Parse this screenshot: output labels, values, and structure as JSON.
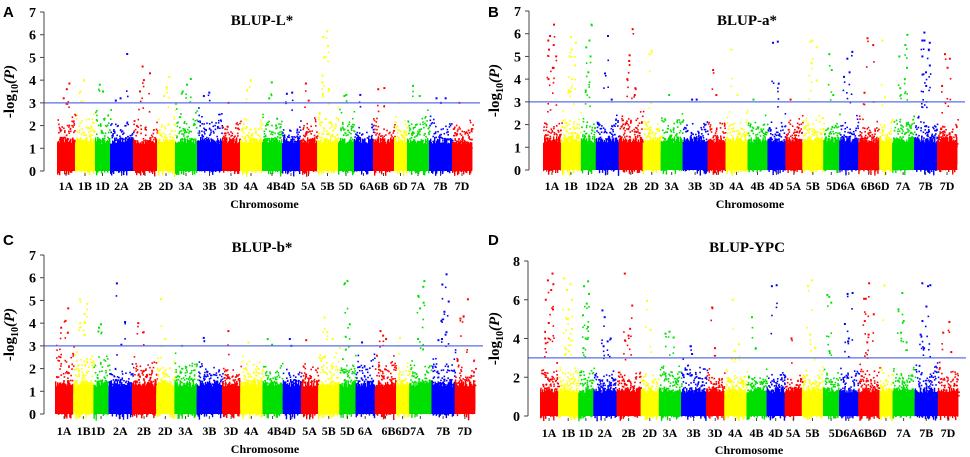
{
  "figure": {
    "chromosome_colors": [
      "#ff0000",
      "#ffff00",
      "#00e000",
      "#0000ff"
    ],
    "threshold_color": "#5b6fe8"
  },
  "chart_data": [
    {
      "panel": "A",
      "type": "scatter",
      "subtype": "manhattan",
      "title": "BLUP-L*",
      "xlabel": "Chromosome",
      "ylabel": "-log10(P)",
      "ylim": [
        0,
        7
      ],
      "yticks": [
        0,
        1,
        2,
        3,
        4,
        5,
        6,
        7
      ],
      "threshold": 3,
      "grid": false,
      "categories": [
        "1A",
        "1B",
        "1D",
        "2A",
        "2B",
        "2D",
        "3A",
        "3B",
        "3D",
        "4A",
        "4B",
        "4D",
        "5A",
        "5B",
        "5D",
        "6A",
        "6B",
        "6D",
        "7A",
        "7B",
        "7D"
      ],
      "category_labels": [
        "1A",
        "1B",
        "1D",
        "2A",
        "2B",
        "2D",
        "3A",
        "3B",
        "3D",
        "4A",
        "4B4D",
        "",
        "5A",
        "5B",
        "5D",
        "6A6B",
        "",
        "6D",
        "7A",
        "7B",
        "7D"
      ],
      "baseline_max": [
        2.8,
        2.9,
        3.0,
        2.7,
        2.6,
        2.8,
        3.0,
        2.9,
        2.6,
        2.9,
        2.9,
        2.4,
        2.7,
        2.9,
        3.0,
        2.3,
        2.6,
        2.8,
        3.0,
        2.6,
        2.7
      ],
      "peaks": [
        {
          "chr": "1A",
          "values": [
            3.2,
            3.6,
            3.85
          ]
        },
        {
          "chr": "1B",
          "values": [
            3.5,
            4.0
          ]
        },
        {
          "chr": "1D",
          "values": [
            3.8,
            3.5
          ]
        },
        {
          "chr": "2A",
          "values": [
            3.1,
            3.2,
            5.15
          ]
        },
        {
          "chr": "2B",
          "values": [
            3.5,
            4.0,
            4.3,
            4.6
          ]
        },
        {
          "chr": "2D",
          "values": [
            3.3,
            3.7,
            4.15
          ]
        },
        {
          "chr": "3A",
          "values": [
            3.5,
            3.8,
            4.05
          ]
        },
        {
          "chr": "3B",
          "values": [
            3.3,
            3.45
          ]
        },
        {
          "chr": "3D",
          "values": [
            3.0
          ]
        },
        {
          "chr": "4A",
          "values": [
            3.55,
            4.0
          ]
        },
        {
          "chr": "4B",
          "values": [
            3.2,
            3.9
          ]
        },
        {
          "chr": "4D",
          "values": [
            3.4,
            3.45
          ]
        },
        {
          "chr": "5A",
          "values": [
            3.85,
            3.1
          ]
        },
        {
          "chr": "5B",
          "values": [
            3.9,
            3.6,
            4.2,
            5.0,
            5.5,
            5.9,
            6.15
          ]
        },
        {
          "chr": "5D",
          "values": [
            3.3,
            3.35
          ]
        },
        {
          "chr": "6A",
          "values": [
            3.35
          ]
        },
        {
          "chr": "6B",
          "values": [
            3.6,
            3.65
          ]
        },
        {
          "chr": "6D",
          "values": [
            3.0
          ]
        },
        {
          "chr": "7A",
          "values": [
            3.75,
            3.3
          ]
        },
        {
          "chr": "7B",
          "values": [
            3.2,
            3.0,
            3.2
          ]
        },
        {
          "chr": "7D",
          "values": [
            3.0
          ]
        }
      ]
    },
    {
      "panel": "B",
      "type": "scatter",
      "subtype": "manhattan",
      "title": "BLUP-a*",
      "xlabel": "Chromosome",
      "ylabel": "-log10(P)",
      "ylim": [
        0,
        7
      ],
      "yticks": [
        0,
        1,
        2,
        3,
        4,
        5,
        6,
        7
      ],
      "threshold": 3,
      "grid": false,
      "categories": [
        "1A",
        "1B",
        "1D",
        "2A",
        "2B",
        "2D",
        "3A",
        "3B",
        "3D",
        "4A",
        "4B",
        "4D",
        "5A",
        "5B",
        "5D",
        "6A",
        "6B",
        "6D",
        "7A",
        "7B",
        "7D"
      ],
      "category_labels": [
        "1A",
        "1B",
        "1D2A",
        "",
        "2B",
        "2D",
        "3A",
        "3B",
        "3D",
        "4A",
        "4B",
        "4D",
        "5A",
        "5B",
        "5D6A",
        "",
        "6B6D",
        "",
        "7A",
        "7B",
        "7D"
      ],
      "baseline_max": [
        2.5,
        2.9,
        2.7,
        2.7,
        3.0,
        2.7,
        2.8,
        2.5,
        2.6,
        2.8,
        2.8,
        2.7,
        2.6,
        2.9,
        2.8,
        2.6,
        2.6,
        2.5,
        2.9,
        2.7,
        2.5
      ],
      "peaks": [
        {
          "chr": "1A",
          "values": [
            4.0,
            4.5,
            5.0,
            5.3,
            5.5,
            5.7,
            5.9,
            6.4
          ]
        },
        {
          "chr": "1B",
          "values": [
            3.5,
            4.0,
            4.6,
            5.0,
            5.3,
            5.6,
            5.85
          ]
        },
        {
          "chr": "1D",
          "values": [
            3.5,
            4.3,
            5.0,
            5.4,
            5.7,
            6.4
          ]
        },
        {
          "chr": "2A",
          "values": [
            4.25,
            5.9,
            3.1
          ]
        },
        {
          "chr": "2B",
          "values": [
            4.0,
            5.05,
            3.3,
            4.8,
            6.2,
            3.6
          ]
        },
        {
          "chr": "2D",
          "values": [
            5.1,
            5.25
          ]
        },
        {
          "chr": "3A",
          "values": [
            3.3
          ]
        },
        {
          "chr": "3B",
          "values": [
            3.1,
            3.1
          ]
        },
        {
          "chr": "3D",
          "values": [
            4.4,
            3.3
          ]
        },
        {
          "chr": "4A",
          "values": [
            5.3,
            3.3
          ]
        },
        {
          "chr": "4B",
          "values": [
            3.1
          ]
        },
        {
          "chr": "4D",
          "values": [
            5.6,
            5.65,
            3.8
          ]
        },
        {
          "chr": "5A",
          "values": [
            3.1
          ]
        },
        {
          "chr": "5B",
          "values": [
            5.65,
            5.7,
            5.4,
            4.7
          ]
        },
        {
          "chr": "5D",
          "values": [
            5.1,
            4.4,
            3.3
          ]
        },
        {
          "chr": "6A",
          "values": [
            4.1,
            4.3,
            5.2,
            4.9
          ]
        },
        {
          "chr": "6B",
          "values": [
            3.4,
            5.8,
            5.5
          ]
        },
        {
          "chr": "6D",
          "values": [
            5.7,
            3.2
          ]
        },
        {
          "chr": "7A",
          "values": [
            3.6,
            4.0,
            4.5,
            5.0,
            5.5,
            5.95
          ]
        },
        {
          "chr": "7B",
          "values": [
            4.2,
            3.7,
            5.6,
            5.7,
            4.3,
            4.6,
            5.0,
            5.3,
            5.7,
            6.05
          ]
        },
        {
          "chr": "7D",
          "values": [
            3.7,
            4.5,
            4.9,
            5.1
          ]
        }
      ]
    },
    {
      "panel": "C",
      "type": "scatter",
      "subtype": "manhattan",
      "title": "BLUP-b*",
      "xlabel": "Chromosome",
      "ylabel": "-log10(P)",
      "ylim": [
        0,
        7
      ],
      "yticks": [
        0,
        1,
        2,
        3,
        4,
        5,
        6,
        7
      ],
      "threshold": 3,
      "grid": false,
      "categories": [
        "1A",
        "1B",
        "1D",
        "2A",
        "2B",
        "2D",
        "3A",
        "3B",
        "3D",
        "4A",
        "4B",
        "4D",
        "5A",
        "5B",
        "5D",
        "6A",
        "6B",
        "6D",
        "7A",
        "7B",
        "7D"
      ],
      "category_labels": [
        "1A",
        "1B1D",
        "",
        "2A",
        "2B",
        "2D",
        "3A",
        "3B",
        "3D",
        "4A",
        "4B4D",
        "",
        "5A",
        "5B",
        "5D",
        "6A",
        "6B6D7A",
        "",
        "",
        "7B",
        "7D"
      ],
      "baseline_max": [
        3.3,
        3.4,
        3.4,
        2.4,
        2.9,
        2.9,
        2.9,
        2.7,
        2.6,
        2.9,
        2.4,
        2.3,
        2.7,
        3.2,
        2.8,
        2.9,
        2.9,
        2.6,
        2.7,
        2.9,
        2.6
      ],
      "peaks": [
        {
          "chr": "1A",
          "values": [
            3.8,
            4.1,
            4.65
          ]
        },
        {
          "chr": "1B",
          "values": [
            4.0,
            4.4,
            4.85,
            5.05,
            4.05
          ]
        },
        {
          "chr": "1D",
          "values": [
            3.8,
            3.95
          ]
        },
        {
          "chr": "2A",
          "values": [
            5.75,
            3.05,
            4.05
          ]
        },
        {
          "chr": "2B",
          "values": [
            4.0,
            3.6
          ]
        },
        {
          "chr": "2D",
          "values": [
            5.05,
            3.3
          ]
        },
        {
          "chr": "3A",
          "values": [
            3.0
          ]
        },
        {
          "chr": "3B",
          "values": [
            3.35
          ]
        },
        {
          "chr": "3D",
          "values": [
            3.65
          ]
        },
        {
          "chr": "4A",
          "values": [
            3.15
          ]
        },
        {
          "chr": "4B",
          "values": [
            3.3,
            3.05
          ]
        },
        {
          "chr": "4D",
          "values": [
            3.3,
            3.0
          ]
        },
        {
          "chr": "5A",
          "values": [
            3.25
          ]
        },
        {
          "chr": "5B",
          "values": [
            4.25,
            3.6,
            3.3
          ]
        },
        {
          "chr": "5D",
          "values": [
            5.75,
            5.85,
            3.95,
            3.4
          ]
        },
        {
          "chr": "6A",
          "values": [
            3.15
          ]
        },
        {
          "chr": "6B",
          "values": [
            3.45,
            3.3,
            3.65
          ]
        },
        {
          "chr": "6D",
          "values": [
            3.35
          ]
        },
        {
          "chr": "7A",
          "values": [
            3.3,
            4.65,
            4.9,
            5.2,
            5.6,
            5.85
          ]
        },
        {
          "chr": "7B",
          "values": [
            3.25,
            3.3,
            3.6,
            4.1,
            4.5,
            4.95,
            5.7,
            6.15
          ]
        },
        {
          "chr": "7D",
          "values": [
            4.2,
            4.3,
            5.05
          ]
        }
      ]
    },
    {
      "panel": "D",
      "type": "scatter",
      "subtype": "manhattan",
      "title": "BLUP-YPC",
      "xlabel": "Chromosome",
      "ylabel": "-log10(P)",
      "ylim": [
        0,
        8
      ],
      "yticks": [
        0,
        2,
        4,
        6,
        8
      ],
      "threshold": 3,
      "grid": false,
      "categories": [
        "1A",
        "1B",
        "1D",
        "2A",
        "2B",
        "2D",
        "3A",
        "3B",
        "3D",
        "4A",
        "4B",
        "4D",
        "5A",
        "5B",
        "5D",
        "6A",
        "6B",
        "6D",
        "7A",
        "7B",
        "7D"
      ],
      "category_labels": [
        "1A",
        "1B",
        "1D",
        "2A",
        "2B",
        "2D",
        "3A",
        "3B",
        "3D",
        "4A",
        "4B",
        "4D",
        "5A",
        "5B",
        "5D6A6B6D",
        "",
        "",
        "",
        "7A",
        "7B",
        "7D"
      ],
      "baseline_max": [
        3.0,
        3.0,
        3.0,
        2.8,
        2.9,
        2.6,
        3.0,
        3.2,
        2.8,
        2.8,
        2.6,
        2.8,
        2.6,
        2.8,
        3.0,
        2.9,
        2.9,
        2.8,
        3.0,
        3.0,
        2.9
      ],
      "peaks": [
        {
          "chr": "1A",
          "values": [
            4.0,
            4.8,
            5.5,
            6.0,
            6.5,
            6.8,
            7.0,
            7.35,
            3.75
          ]
        },
        {
          "chr": "1B",
          "values": [
            3.5,
            4.0,
            4.5,
            5.0,
            5.5,
            6.0,
            6.5,
            6.8,
            7.1
          ]
        },
        {
          "chr": "1D",
          "values": [
            3.5,
            4.0,
            4.6,
            5.2,
            5.8,
            6.3,
            6.7,
            6.95
          ]
        },
        {
          "chr": "2A",
          "values": [
            5.45,
            5.1,
            4.0,
            3.6,
            3.85
          ]
        },
        {
          "chr": "2B",
          "values": [
            3.9,
            4.15,
            5.7,
            7.35,
            4.5
          ]
        },
        {
          "chr": "2D",
          "values": [
            5.95,
            4.45
          ]
        },
        {
          "chr": "3A",
          "values": [
            4.25,
            4.35,
            4.05
          ]
        },
        {
          "chr": "3B",
          "values": [
            3.6,
            3.2
          ]
        },
        {
          "chr": "3D",
          "values": [
            5.6,
            3.5
          ]
        },
        {
          "chr": "4A",
          "values": [
            6.0,
            3.35,
            3.7
          ]
        },
        {
          "chr": "4B",
          "values": [
            5.1,
            3.5
          ]
        },
        {
          "chr": "4D",
          "values": [
            6.7,
            6.75
          ]
        },
        {
          "chr": "5A",
          "values": [
            4.0
          ]
        },
        {
          "chr": "5B",
          "values": [
            6.7,
            7.0,
            3.5,
            4.2
          ]
        },
        {
          "chr": "5D",
          "values": [
            6.15,
            5.85,
            6.25,
            3.35
          ]
        },
        {
          "chr": "6A",
          "values": [
            4.75,
            3.85,
            6.35,
            6.3,
            4.0
          ]
        },
        {
          "chr": "6B",
          "values": [
            6.05,
            4.2,
            5.25,
            4.9,
            6.85,
            6.05,
            3.8
          ]
        },
        {
          "chr": "6D",
          "values": [
            6.75
          ]
        },
        {
          "chr": "7A",
          "values": [
            4.3,
            4.9,
            5.5,
            6.35,
            3.8
          ]
        },
        {
          "chr": "7B",
          "values": [
            4.9,
            6.7,
            6.75,
            6.85,
            5.65,
            4.2,
            3.5
          ]
        },
        {
          "chr": "7D",
          "values": [
            4.3,
            4.85,
            3.3
          ]
        }
      ]
    }
  ],
  "panels": [
    {
      "letter": "A",
      "title": "BLUP-L*",
      "xlabel": "Chromosome",
      "ylabel_main": "-log",
      "ylabel_sub": "10",
      "ylabel_tail": "(P)"
    },
    {
      "letter": "B",
      "title": "BLUP-a*",
      "xlabel": "Chromosome",
      "ylabel_main": "-log",
      "ylabel_sub": "10",
      "ylabel_tail": "(P)"
    },
    {
      "letter": "C",
      "title": "BLUP-b*",
      "xlabel": "Chromosome",
      "ylabel_main": "-log",
      "ylabel_sub": "10",
      "ylabel_tail": "(P)"
    },
    {
      "letter": "D",
      "title": "BLUP-YPC",
      "xlabel": "Chromosome",
      "ylabel_main": "-log",
      "ylabel_sub": "10",
      "ylabel_tail": "(P)"
    }
  ]
}
